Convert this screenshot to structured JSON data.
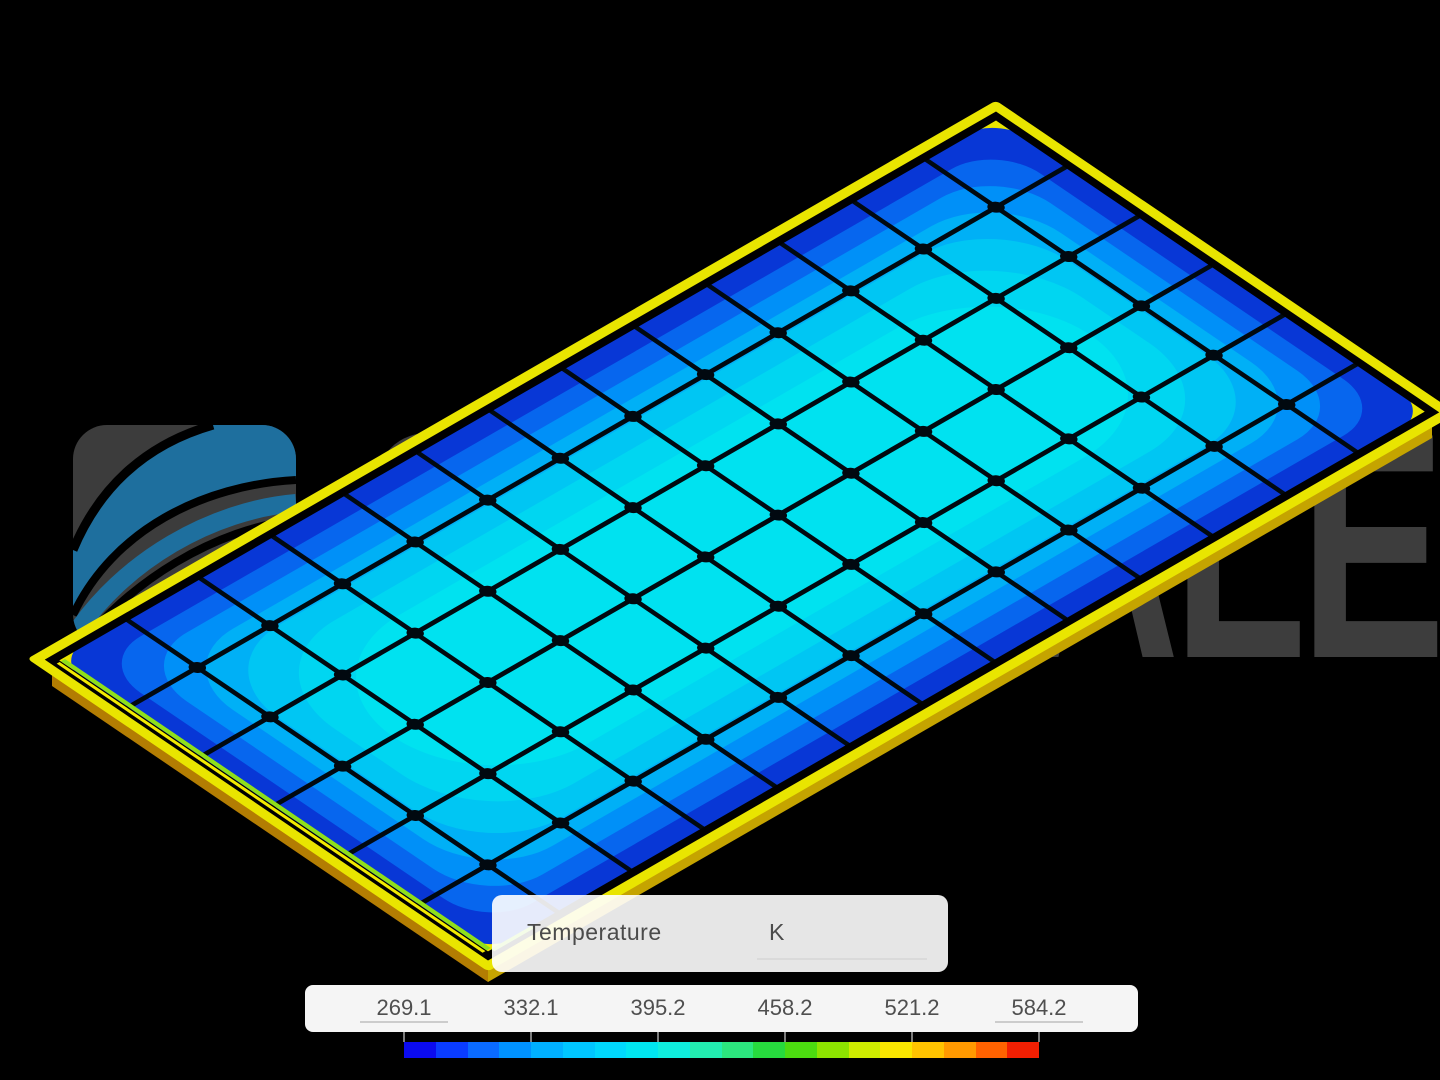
{
  "background_color": "#000000",
  "watermark": {
    "brand_text": "SIMSCALE",
    "text_color": "#3d3d3d",
    "icon": "simscale-swoosh-icon",
    "icon_bg": "#3c3c3c",
    "swoosh_color": "#1e6f9e"
  },
  "viewer": {
    "content": "solar panel 3D temperature contour result",
    "grid_rows": 6,
    "grid_cols": 13,
    "frame_color": "#e9e500",
    "glass_outline_color": "#000000",
    "grid_line_color": "#010910",
    "skirt_colors": {
      "left_top": "#e2b60a",
      "left_bottom": "#b37d02",
      "right_top": "#ddc802",
      "right_bottom": "#c5a400"
    },
    "hot_stripe_colors": [
      "#f2ea00",
      "#8fe01a"
    ],
    "field_bands": [
      {
        "inset": 0.0,
        "color": "#0837d6"
      },
      {
        "inset": 0.3,
        "color": "#0766ee"
      },
      {
        "inset": 0.55,
        "color": "#0090f8"
      },
      {
        "inset": 0.8,
        "color": "#00b0f6"
      },
      {
        "inset": 1.05,
        "color": "#00c6f3"
      },
      {
        "inset": 1.35,
        "color": "#00d6f1"
      },
      {
        "inset": 1.7,
        "color": "#00e2f0"
      }
    ]
  },
  "temperature_panel": {
    "label": "Temperature",
    "unit_value": "K"
  },
  "legend": {
    "tick_labels": [
      "269.1",
      "332.1",
      "395.2",
      "458.2",
      "521.2",
      "584.2"
    ],
    "min_value": "269.1",
    "max_value": "584.2",
    "label_color": "#4f4f4f",
    "colorbar_colors": [
      "#0b0bf0",
      "#0a3cff",
      "#0a6aff",
      "#0092ff",
      "#00b0ff",
      "#00c6ff",
      "#00d8fc",
      "#00e6f0",
      "#0feedd",
      "#22edb0",
      "#2ce67e",
      "#27da3e",
      "#4cdb10",
      "#8de300",
      "#ceec00",
      "#f9e600",
      "#ffc300",
      "#ff9900",
      "#ff6200",
      "#f21f02"
    ]
  }
}
